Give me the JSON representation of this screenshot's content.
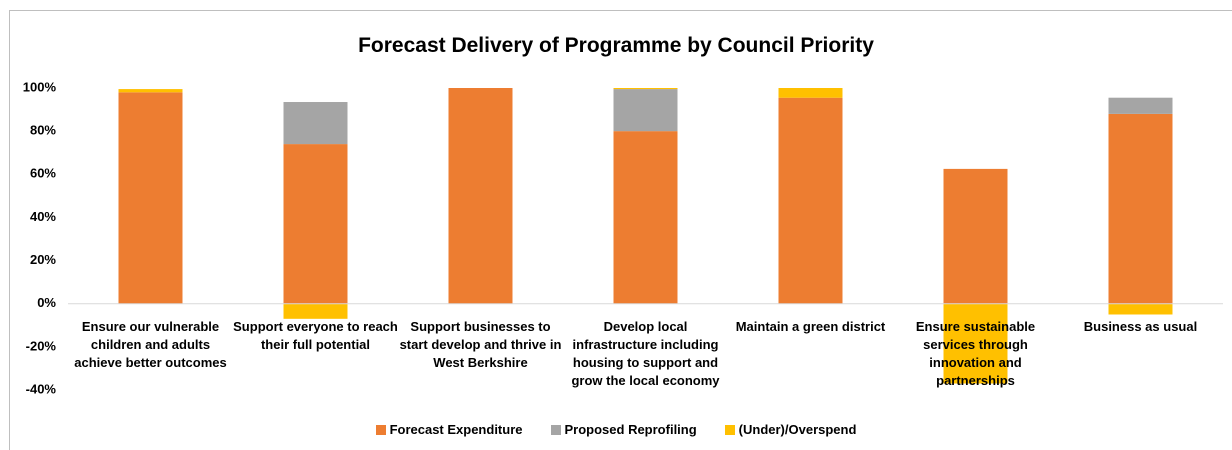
{
  "chart_data": {
    "type": "stacked_bar",
    "title": "Forecast Delivery of Programme by Council Priority",
    "categories": [
      "Ensure our vulnerable children and adults achieve better outcomes",
      "Support everyone to reach their full potential",
      "Support businesses to start develop and thrive in West Berkshire",
      "Develop local infrastructure including housing to support and grow the local economy",
      "Maintain a green district",
      "Ensure sustainable services through innovation and partnerships",
      "Business as usual"
    ],
    "series": [
      {
        "name": "Forecast Expenditure",
        "color": "#ED7D31",
        "values": [
          98,
          74,
          100,
          80,
          95.5,
          62.5,
          88
        ]
      },
      {
        "name": "Proposed Reprofiling",
        "color": "#A5A5A5",
        "values": [
          0,
          19.5,
          0,
          19.5,
          0,
          0,
          7.5
        ]
      },
      {
        "name": "(Under)/Overspend",
        "color": "#FFC000",
        "values": [
          1.5,
          -7,
          0,
          0.5,
          4.5,
          -37,
          -5
        ]
      }
    ],
    "ylim": [
      -40,
      100
    ],
    "yticks": [
      {
        "value": -40,
        "label": "-40%"
      },
      {
        "value": -20,
        "label": "-20%"
      },
      {
        "value": 0,
        "label": "0%"
      },
      {
        "value": 20,
        "label": "20%"
      },
      {
        "value": 40,
        "label": "40%"
      },
      {
        "value": 60,
        "label": "60%"
      },
      {
        "value": 80,
        "label": "80%"
      },
      {
        "value": 100,
        "label": "100%"
      }
    ],
    "legend": "bottom"
  }
}
